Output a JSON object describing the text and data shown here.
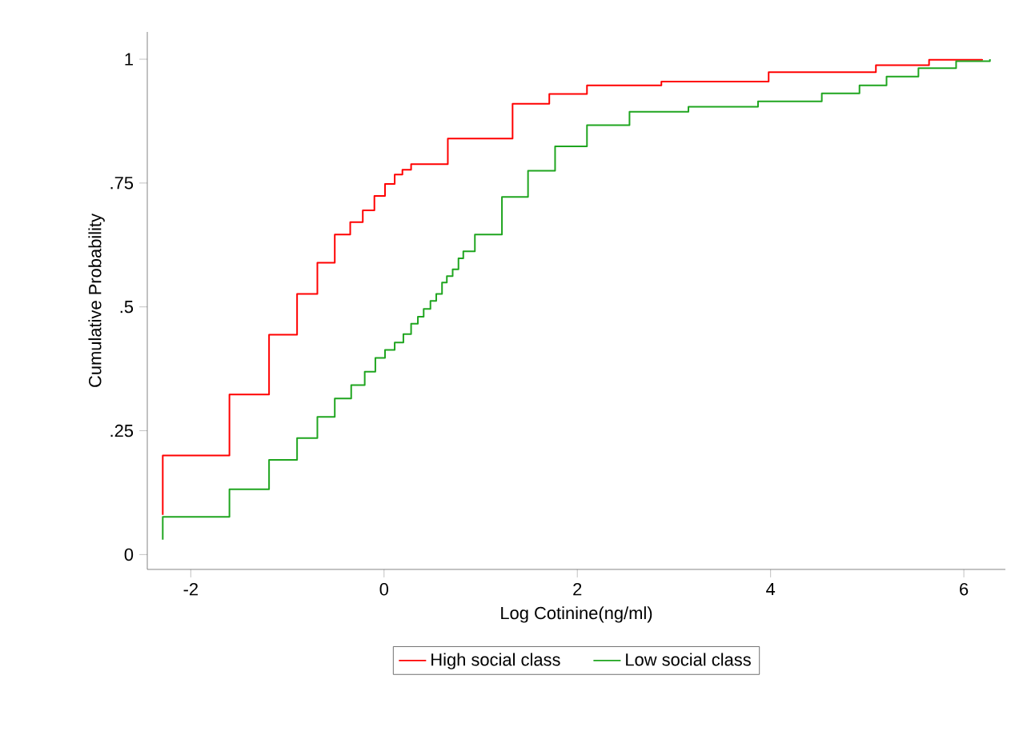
{
  "chart_data": {
    "type": "step",
    "xlabel": "Log Cotinine(ng/ml)",
    "ylabel": "Cumulative Probability",
    "xlim": [
      -2.45,
      6.43
    ],
    "ylim": [
      -0.03,
      1.055
    ],
    "xticks": [
      -2,
      0,
      2,
      4,
      6
    ],
    "yticks": [
      0,
      {
        "value": 0.25,
        "label": ".25"
      },
      {
        "value": 0.5,
        "label": ".5"
      },
      {
        "value": 0.75,
        "label": ".75"
      },
      1
    ],
    "legend": "bottom",
    "grid": false,
    "series": [
      {
        "name": "High social class",
        "color": "#ff0000",
        "x": [
          -2.29,
          -2.29,
          -1.6,
          -1.19,
          -0.9,
          -0.69,
          -0.51,
          -0.35,
          -0.22,
          -0.1,
          0.01,
          0.11,
          0.19,
          0.28,
          0.66,
          1.33,
          1.71,
          2.1,
          2.87,
          3.98,
          5.09,
          5.64,
          6.19
        ],
        "values": [
          0.08,
          0.2,
          0.323,
          0.444,
          0.526,
          0.589,
          0.646,
          0.671,
          0.695,
          0.724,
          0.748,
          0.767,
          0.777,
          0.788,
          0.84,
          0.91,
          0.93,
          0.947,
          0.955,
          0.974,
          0.988,
          0.999,
          1
        ]
      },
      {
        "name": "Low social class",
        "color": "#1fa51f",
        "x": [
          -2.29,
          -2.29,
          -1.6,
          -1.19,
          -0.9,
          -0.69,
          -0.51,
          -0.34,
          -0.2,
          -0.09,
          0.01,
          0.11,
          0.2,
          0.28,
          0.35,
          0.41,
          0.48,
          0.54,
          0.6,
          0.65,
          0.71,
          0.77,
          0.82,
          0.94,
          1.22,
          1.49,
          1.77,
          2.1,
          2.54,
          3.15,
          3.87,
          4.53,
          4.92,
          5.2,
          5.53,
          5.92,
          6.27
        ],
        "values": [
          0.03,
          0.076,
          0.132,
          0.191,
          0.235,
          0.278,
          0.315,
          0.342,
          0.369,
          0.397,
          0.413,
          0.428,
          0.445,
          0.466,
          0.48,
          0.496,
          0.512,
          0.526,
          0.549,
          0.562,
          0.576,
          0.598,
          0.612,
          0.646,
          0.722,
          0.775,
          0.824,
          0.867,
          0.894,
          0.904,
          0.915,
          0.931,
          0.947,
          0.965,
          0.982,
          0.996,
          1
        ]
      }
    ]
  }
}
